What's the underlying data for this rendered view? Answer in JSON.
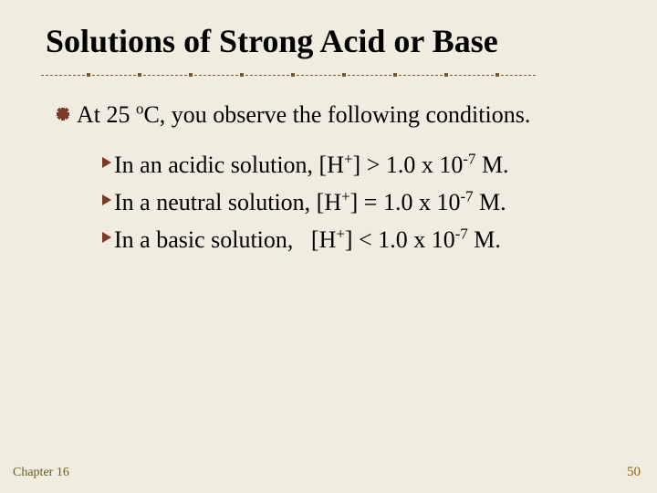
{
  "title": "Solutions of Strong Acid or Base",
  "intro": {
    "pre": "At 25 ",
    "sup": "o",
    "post": "C, you observe the following conditions."
  },
  "conditions": [
    {
      "label": "In an acidic solution, [H",
      "sup1": "+",
      "mid": "] > 1.0 x 10",
      "sup2": "-7",
      "tail": " M."
    },
    {
      "label": "In a neutral solution, [H",
      "sup1": "+",
      "mid": "] = 1.0 x 10",
      "sup2": "-7",
      "tail": " M."
    },
    {
      "label": "In a basic solution,   [H",
      "sup1": "+",
      "mid": "] < 1.0 x 10",
      "sup2": "-7",
      "tail": " M."
    }
  ],
  "footer": {
    "chapter": "Chapter 16",
    "page": "50"
  },
  "colors": {
    "background": "#f0ede0",
    "title": "#000000",
    "text": "#000000",
    "divider": "#7a5a36",
    "bullet": "#7a3a2a",
    "footer": "#8a6a1c"
  }
}
